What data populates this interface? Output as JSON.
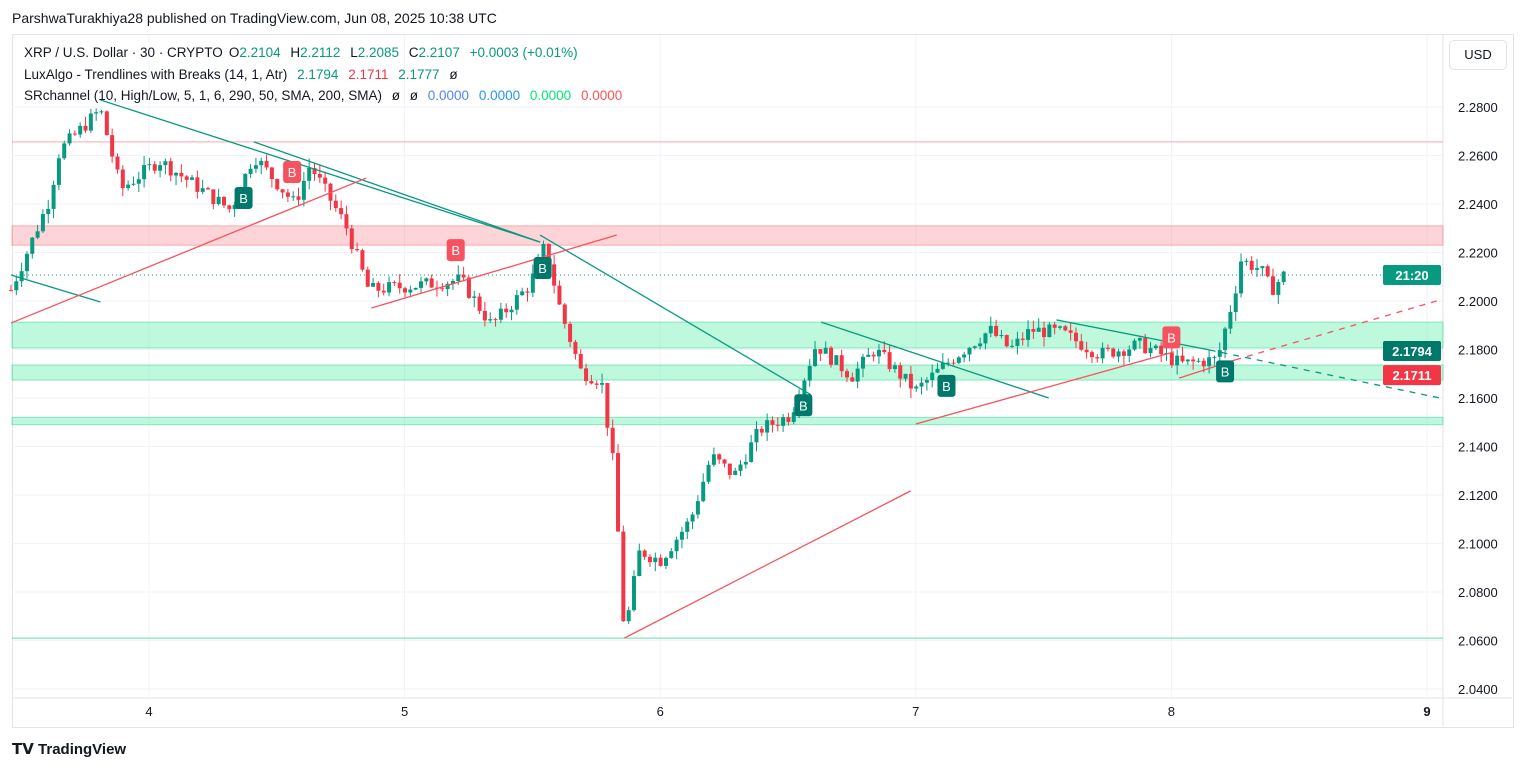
{
  "header": {
    "published": "ParshwaTurakhiya28 published on TradingView.com, Jun 08, 2025 10:38 UTC"
  },
  "legend": {
    "symbol": "XRP / U.S. Dollar · 30 · CRYPTO",
    "o_label": "O",
    "o": "2.2104",
    "h_label": "H",
    "h": "2.2112",
    "l_label": "L",
    "l": "2.2085",
    "c_label": "C",
    "c": "2.2107",
    "change": "+0.0003 (+0.01%)",
    "lux_name": "LuxAlgo - Trendlines with Breaks (14, 1, Atr)",
    "lux_v1": "2.1794",
    "lux_v2": "2.1711",
    "lux_v3": "2.1777",
    "lux_v4": "ø",
    "sr_name": "SRchannel (10, High/Low, 5, 1, 6, 290, 50, SMA, 200, SMA)",
    "sr_n1": "ø",
    "sr_n2": "ø",
    "sr_v1": "0.0000",
    "sr_v2": "0.0000",
    "sr_v3": "0.0000",
    "sr_v4": "0.0000"
  },
  "currency": "USD",
  "footer": {
    "logo": "TradingView"
  },
  "colors": {
    "up": "#089981",
    "down": "#f23645",
    "teal": "#089981",
    "red": "#f7525f"
  },
  "chart_data": {
    "type": "candlestick",
    "title": "XRP / U.S. Dollar · 30 · CRYPTO",
    "xlim": [
      3.45,
      9.1
    ],
    "ylim": [
      2.04,
      2.3
    ],
    "x_ticks": [
      "4",
      "5",
      "6",
      "7",
      "8",
      "9"
    ],
    "y_ticks": [
      "2.2800",
      "2.2600",
      "2.2400",
      "2.2200",
      "2.2000",
      "2.1800",
      "2.1600",
      "2.1400",
      "2.1200",
      "2.1000",
      "2.0800",
      "2.0600",
      "2.0400"
    ],
    "interval_days": 0.0208333,
    "close_anchors": [
      [
        3.46,
        2.2045
      ],
      [
        3.61,
        2.2417
      ],
      [
        3.65,
        2.262
      ],
      [
        3.81,
        2.279
      ],
      [
        3.89,
        2.246
      ],
      [
        4.04,
        2.258
      ],
      [
        4.32,
        2.2375
      ],
      [
        4.41,
        2.26
      ],
      [
        4.57,
        2.24
      ],
      [
        4.63,
        2.256
      ],
      [
        4.77,
        2.231
      ],
      [
        4.86,
        2.2045
      ],
      [
        5.06,
        2.2066
      ],
      [
        5.22,
        2.2087
      ],
      [
        5.34,
        2.19
      ],
      [
        5.49,
        2.2066
      ],
      [
        5.55,
        2.223
      ],
      [
        5.61,
        2.196
      ],
      [
        5.69,
        2.171
      ],
      [
        5.77,
        2.167
      ],
      [
        5.82,
        2.13
      ],
      [
        5.86,
        2.062
      ],
      [
        5.92,
        2.097
      ],
      [
        6.0,
        2.093
      ],
      [
        6.12,
        2.11
      ],
      [
        6.2,
        2.136
      ],
      [
        6.29,
        2.128
      ],
      [
        6.39,
        2.147
      ],
      [
        6.51,
        2.153
      ],
      [
        6.61,
        2.182
      ],
      [
        6.75,
        2.169
      ],
      [
        6.84,
        2.18
      ],
      [
        7.0,
        2.163
      ],
      [
        7.14,
        2.176
      ],
      [
        7.29,
        2.188
      ],
      [
        7.37,
        2.18
      ],
      [
        7.45,
        2.188
      ],
      [
        7.57,
        2.187
      ],
      [
        7.72,
        2.178
      ],
      [
        7.88,
        2.182
      ],
      [
        8.04,
        2.174
      ],
      [
        8.18,
        2.176
      ],
      [
        8.25,
        2.2045
      ],
      [
        8.27,
        2.217
      ],
      [
        8.35,
        2.213
      ],
      [
        8.39,
        2.2045
      ],
      [
        8.44,
        2.2107
      ]
    ],
    "resistance_zones": [
      [
        2.223,
        2.231
      ]
    ],
    "support_zones": [
      [
        2.1806,
        2.1913
      ],
      [
        2.1674,
        2.1736
      ],
      [
        2.149,
        2.152
      ]
    ],
    "resistance_line": 2.2656,
    "support_line": 2.061,
    "last_price": 2.2107,
    "trendlines_down": [
      [
        [
          3.81,
          2.2829
        ],
        [
          5.53,
          2.2243
        ]
      ],
      [
        [
          4.41,
          2.2656
        ],
        [
          5.53,
          2.2243
        ]
      ],
      [
        [
          3.46,
          2.2107
        ],
        [
          3.81,
          2.1996
        ]
      ],
      [
        [
          5.53,
          2.2272
        ],
        [
          6.59,
          2.1613
        ]
      ],
      [
        [
          6.63,
          2.1913
        ],
        [
          7.52,
          2.16
        ]
      ],
      [
        [
          7.55,
          2.1922
        ],
        [
          8.15,
          2.1798
        ]
      ]
    ],
    "trendlines_up": [
      [
        [
          3.46,
          2.1909
        ],
        [
          4.85,
          2.2507
        ]
      ],
      [
        [
          4.87,
          2.1971
        ],
        [
          5.83,
          2.2272
        ]
      ],
      [
        [
          5.86,
          2.061
        ],
        [
          6.98,
          2.1217
        ]
      ],
      [
        [
          7.0,
          2.1493
        ],
        [
          8.01,
          2.179
        ]
      ],
      [
        [
          8.03,
          2.1682
        ],
        [
          8.25,
          2.1757
        ]
      ]
    ],
    "projection_down": [
      [
        8.15,
        2.1798
      ],
      [
        9.05,
        2.16
      ]
    ],
    "projection_up": [
      [
        8.25,
        2.1757
      ],
      [
        9.05,
        2.2004
      ]
    ],
    "break_labels": [
      {
        "t": "B",
        "x": 4.37,
        "y": 2.2425,
        "kind": "up"
      },
      {
        "t": "B",
        "x": 4.56,
        "y": 2.2532,
        "kind": "down"
      },
      {
        "t": "B",
        "x": 5.2,
        "y": 2.221,
        "kind": "down"
      },
      {
        "t": "B",
        "x": 5.54,
        "y": 2.2136,
        "kind": "up"
      },
      {
        "t": "B",
        "x": 6.56,
        "y": 2.157,
        "kind": "up"
      },
      {
        "t": "B",
        "x": 7.12,
        "y": 2.165,
        "kind": "up"
      },
      {
        "t": "B",
        "x": 8.0,
        "y": 2.185,
        "kind": "down"
      },
      {
        "t": "B",
        "x": 8.21,
        "y": 2.171,
        "kind": "up"
      }
    ],
    "price_tags": [
      {
        "label": "21:20",
        "value": 2.2107,
        "color": "#089981"
      },
      {
        "label": "2.1794",
        "value": 2.1794,
        "color": "#00796b"
      },
      {
        "label": "2.1711",
        "value": 2.1711,
        "color": "#f23645"
      }
    ]
  }
}
